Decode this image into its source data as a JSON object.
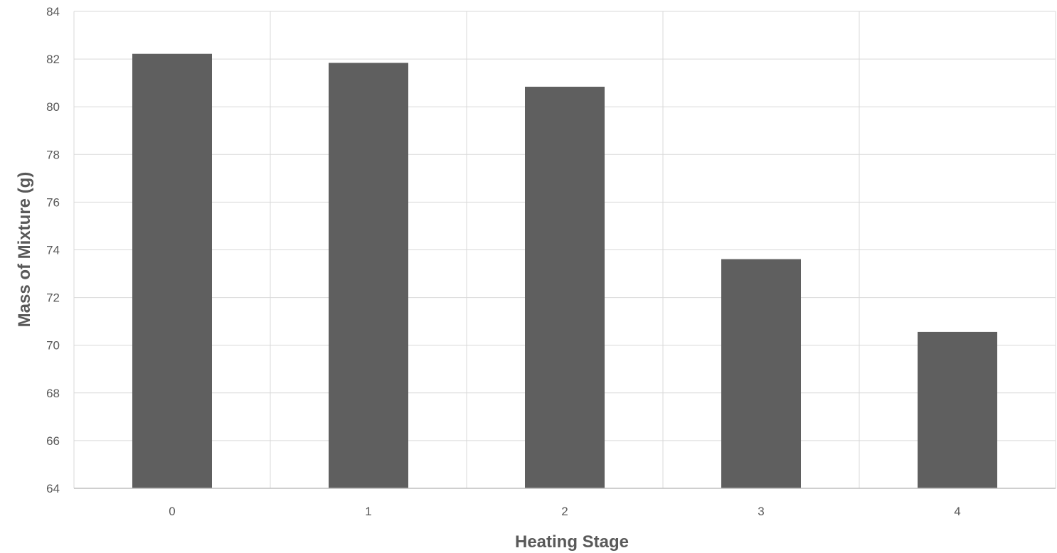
{
  "chart_data": {
    "type": "bar",
    "title": "",
    "xlabel": "Heating Stage",
    "ylabel": "Mass of Mixture (g)",
    "categories": [
      "0",
      "1",
      "2",
      "3",
      "4"
    ],
    "values": [
      82.22,
      81.84,
      80.84,
      73.61,
      70.56
    ],
    "ylim": [
      64,
      84
    ],
    "yticks": [
      "64",
      "66",
      "68",
      "70",
      "72",
      "74",
      "76",
      "78",
      "80",
      "82",
      "84"
    ],
    "grid": true,
    "legend": "none",
    "colors": {
      "bar": "#5f5f5f",
      "grid": "#d9d9d9",
      "axis": "#bfbfbf",
      "text": "#595959"
    }
  }
}
